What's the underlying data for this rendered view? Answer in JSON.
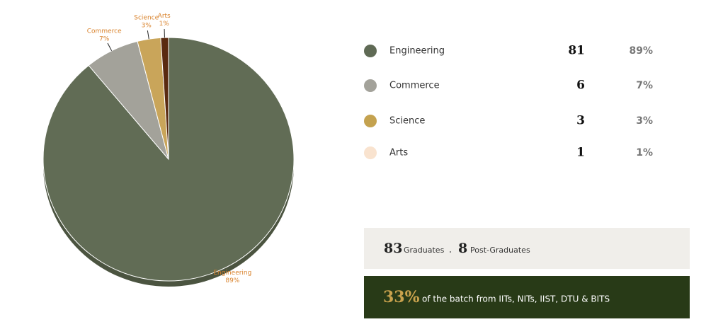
{
  "chart_data": {
    "type": "pie",
    "categories": [
      "Engineering",
      "Commerce",
      "Science",
      "Arts"
    ],
    "values": [
      89,
      7,
      3,
      1
    ],
    "value_labels": [
      "89%",
      "7%",
      "3%",
      "1%"
    ],
    "colors": [
      "#616c55",
      "#a3a29a",
      "#c9a55a",
      "#5a2a10"
    ],
    "counts": [
      81,
      6,
      3,
      1
    ],
    "legend_colors": [
      "#5f6a55",
      "#a3a29a",
      "#c4a24f",
      "#f9e3cf"
    ]
  },
  "summary": {
    "graduates": {
      "value": 83,
      "label": "Graduates"
    },
    "post_graduates": {
      "value": 8,
      "label": "Post-Graduates"
    }
  },
  "highlight": {
    "value": "33%",
    "text": "of the batch from IITs, NITs, IIST, DTU & BITS"
  }
}
